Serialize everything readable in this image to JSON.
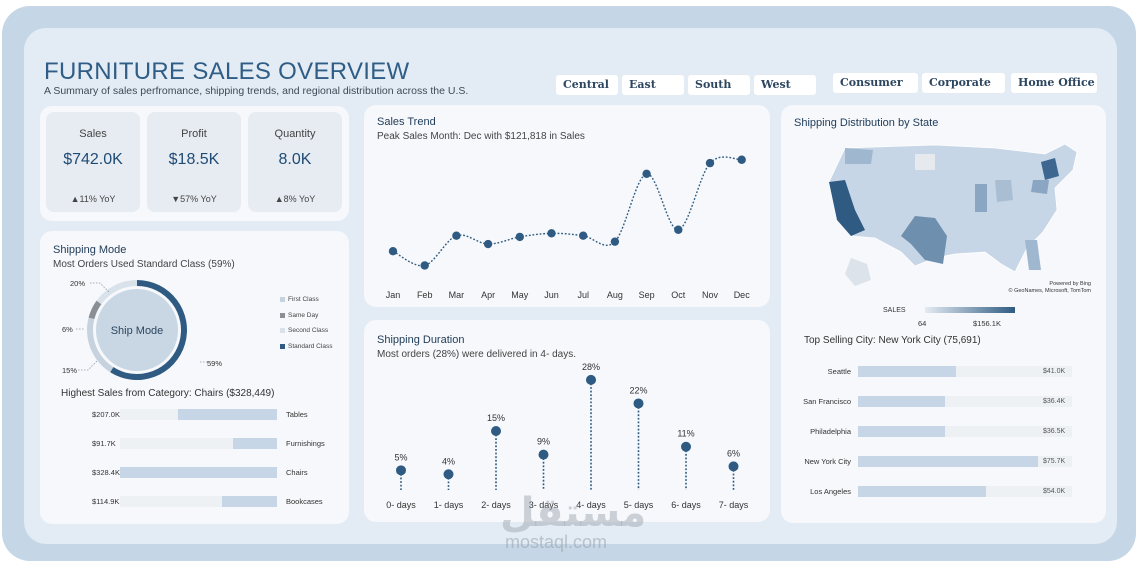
{
  "header": {
    "title": "FURNITURE SALES OVERVIEW",
    "subtitle": "A Summary of sales perfromance, shipping trends, and regional distribution across the U.S."
  },
  "region_slicers": [
    "Central",
    "East",
    "South",
    "West"
  ],
  "segment_slicers": [
    "Consumer",
    "Corporate",
    "Home Office"
  ],
  "kpis": [
    {
      "label": "Sales",
      "value": "$742.0K",
      "yoy": "▲11% YoY"
    },
    {
      "label": "Profit",
      "value": "$18.5K",
      "yoy": "▼57% YoY"
    },
    {
      "label": "Quantity",
      "value": "8.0K",
      "yoy": "▲8% YoY"
    }
  ],
  "shipping_mode": {
    "title": "Shipping Mode",
    "subtitle": "Most Orders Used Standard Class (59%)",
    "center_label": "Ship Mode",
    "legend": [
      "First Class",
      "Same Day",
      "Second Class",
      "Standard Class"
    ],
    "colors": [
      "#c6d3df",
      "#8a8f96",
      "#d9e2eb",
      "#2f5b82"
    ],
    "labels": [
      "20%",
      "6%",
      "15%",
      "59%"
    ]
  },
  "category_sales": {
    "title": "Highest Sales from Category: Chairs ($328,449)",
    "max": 328449,
    "rows": [
      {
        "value_label": "$207.0K",
        "category": "Tables",
        "value": 207000
      },
      {
        "value_label": "$91.7K",
        "category": "Furnishings",
        "value": 91700
      },
      {
        "value_label": "$328.4K",
        "category": "Chairs",
        "value": 328400
      },
      {
        "value_label": "$114.9K",
        "category": "Bookcases",
        "value": 114900
      }
    ]
  },
  "sales_trend": {
    "title": "Sales Trend",
    "subtitle": "Peak Sales Month: Dec with $121,818 in Sales"
  },
  "shipping_duration": {
    "title": "Shipping Duration",
    "subtitle": "Most orders (28%) were delivered in 4- days."
  },
  "map": {
    "title": "Shipping Distribution by State",
    "legend_title": "SALES",
    "legend_min": "64",
    "legend_max": "$156.1K",
    "powered_by": "Powered by Bing",
    "copyright": "© GeoNames, Microsoft, TomTom"
  },
  "top_cities": {
    "title": "Top Selling City: New York City (75,691)",
    "max": 75691,
    "rows": [
      {
        "city": "Seattle",
        "value_label": "$41.0K",
        "value": 41000
      },
      {
        "city": "San Francisco",
        "value_label": "$36.4K",
        "value": 36400
      },
      {
        "city": "Philadelphia",
        "value_label": "$36.5K",
        "value": 36500
      },
      {
        "city": "New York City",
        "value_label": "$75.7K",
        "value": 75700
      },
      {
        "city": "Los Angeles",
        "value_label": "$54.0K",
        "value": 54000
      }
    ]
  },
  "watermark": {
    "arabic": "مستقل",
    "latin": "mostaql.com"
  },
  "chart_data": [
    {
      "type": "line",
      "title": "Sales Trend",
      "categories": [
        "Jan",
        "Feb",
        "Mar",
        "Apr",
        "May",
        "Jun",
        "Jul",
        "Aug",
        "Sep",
        "Oct",
        "Nov",
        "Dec"
      ],
      "values": [
        45000,
        33000,
        58000,
        51000,
        57000,
        60000,
        58000,
        53000,
        110000,
        63000,
        119000,
        121818
      ],
      "ylim": [
        25000,
        130000
      ],
      "grid": false
    },
    {
      "type": "scatter",
      "title": "Shipping Duration",
      "categories": [
        "0- days",
        "1- days",
        "2- days",
        "3- days",
        "4- days",
        "5- days",
        "6- days",
        "7- days"
      ],
      "values": [
        5,
        4,
        15,
        9,
        28,
        22,
        11,
        6
      ],
      "labels": [
        "5%",
        "4%",
        "15%",
        "9%",
        "28%",
        "22%",
        "11%",
        "6%"
      ],
      "ylim": [
        0,
        30
      ]
    },
    {
      "type": "pie",
      "title": "Shipping Mode",
      "categories": [
        "First Class",
        "Same Day",
        "Second Class",
        "Standard Class"
      ],
      "values": [
        20,
        6,
        15,
        59
      ]
    }
  ]
}
